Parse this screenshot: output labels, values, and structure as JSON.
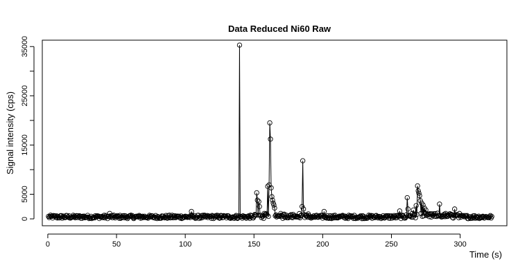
{
  "chart_data": {
    "type": "scatter",
    "title": "Data Reduced Ni60 Raw",
    "xlabel": "Time (s)",
    "ylabel": "Signal intensity (cps)",
    "xlim": [
      -4,
      334
    ],
    "ylim": [
      -1400,
      36300
    ],
    "x_ticks": [
      0,
      50,
      100,
      150,
      200,
      250,
      300
    ],
    "y_ticks": [
      0,
      5000,
      15000,
      25000,
      35000
    ],
    "y_minor_ticks": [
      10000,
      20000,
      30000
    ],
    "baseline": 400,
    "duration": 323,
    "sample_step": 0.5,
    "spikes": [
      {
        "x": 45,
        "y": 1100
      },
      {
        "x": 104.5,
        "y": 1500
      },
      {
        "x": 139.5,
        "y": 35300
      },
      {
        "x": 152,
        "y": 5300
      },
      {
        "x": 152.5,
        "y": 3800
      },
      {
        "x": 153.5,
        "y": 3500
      },
      {
        "x": 154,
        "y": 2500
      },
      {
        "x": 160,
        "y": 6600
      },
      {
        "x": 161,
        "y": 6900
      },
      {
        "x": 161.5,
        "y": 19500
      },
      {
        "x": 162,
        "y": 16200
      },
      {
        "x": 162.5,
        "y": 6300
      },
      {
        "x": 163,
        "y": 4500
      },
      {
        "x": 163.5,
        "y": 3800
      },
      {
        "x": 164,
        "y": 3200
      },
      {
        "x": 164.5,
        "y": 2800
      },
      {
        "x": 165,
        "y": 2200
      },
      {
        "x": 185.5,
        "y": 11800
      },
      {
        "x": 185,
        "y": 2500
      },
      {
        "x": 186,
        "y": 2000
      },
      {
        "x": 201,
        "y": 1500
      },
      {
        "x": 256,
        "y": 1600
      },
      {
        "x": 261.5,
        "y": 4300
      },
      {
        "x": 262,
        "y": 2000
      },
      {
        "x": 266,
        "y": 1800
      },
      {
        "x": 268,
        "y": 2700
      },
      {
        "x": 269,
        "y": 6700
      },
      {
        "x": 269.5,
        "y": 5700
      },
      {
        "x": 270,
        "y": 5200
      },
      {
        "x": 270.5,
        "y": 4700
      },
      {
        "x": 271,
        "y": 3700
      },
      {
        "x": 272,
        "y": 3200
      },
      {
        "x": 273,
        "y": 2800
      },
      {
        "x": 274,
        "y": 2200
      },
      {
        "x": 275,
        "y": 1800
      },
      {
        "x": 285,
        "y": 3000
      },
      {
        "x": 296,
        "y": 2000
      }
    ]
  }
}
